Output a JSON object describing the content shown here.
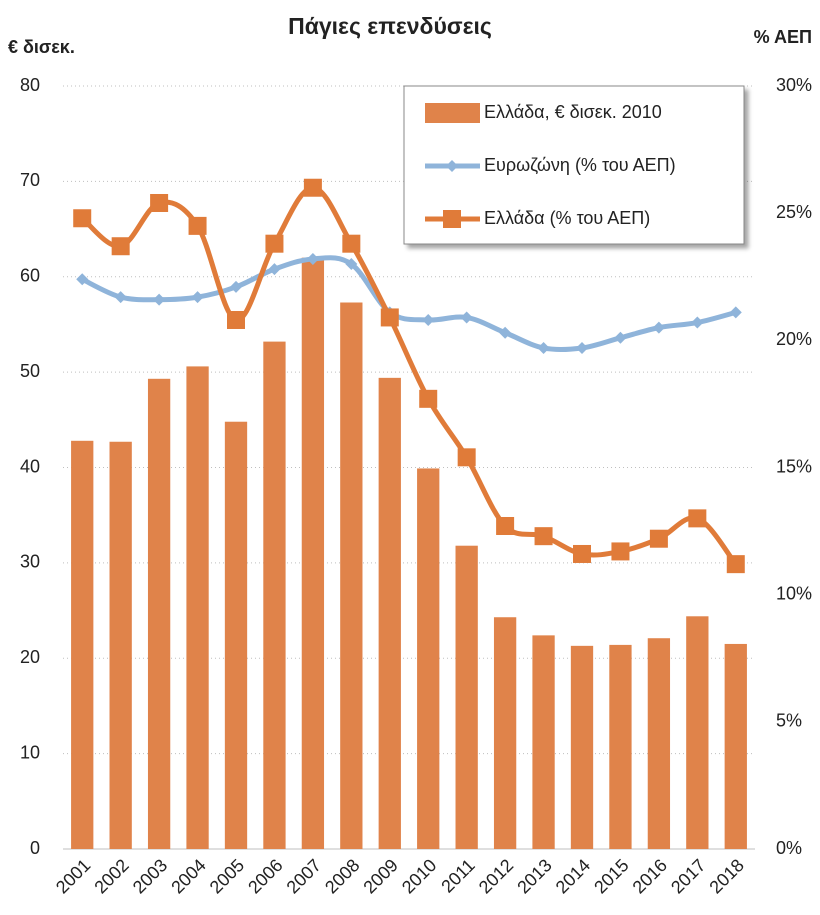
{
  "chart_data": {
    "type": "bar_line",
    "title": "Πάγιες επενδύσεις",
    "ylabel": "€ δισεκ.",
    "y2label": "% ΑΕΠ",
    "categories": [
      "2001",
      "2002",
      "2003",
      "2004",
      "2005",
      "2006",
      "2007",
      "2008",
      "2009",
      "2010",
      "2011",
      "2012",
      "2013",
      "2014",
      "2015",
      "2016",
      "2017",
      "2018"
    ],
    "series": [
      {
        "name": "Ελλάδα, € δισεκ. 2010",
        "type": "bar",
        "color": "#E0834A",
        "values": [
          42.8,
          42.7,
          49.3,
          50.6,
          44.8,
          53.2,
          62.0,
          57.3,
          49.4,
          39.9,
          31.8,
          24.3,
          22.4,
          21.3,
          21.4,
          22.1,
          24.4,
          21.5
        ]
      },
      {
        "name": "Ευρωζώνη (% του ΑΕΠ)",
        "type": "line",
        "marker": "diamond",
        "axis": "y2",
        "color": "#8FB4DA",
        "values": [
          22.4,
          21.7,
          21.6,
          21.7,
          22.1,
          22.8,
          23.2,
          23.0,
          21.1,
          20.8,
          20.9,
          20.3,
          19.7,
          19.7,
          20.1,
          20.5,
          20.7,
          21.1
        ]
      },
      {
        "name": "Ελλάδα (% του ΑΕΠ)",
        "type": "line",
        "marker": "square",
        "axis": "y2",
        "color": "#E07B39",
        "values": [
          24.8,
          23.7,
          25.4,
          24.5,
          20.8,
          23.8,
          26.0,
          23.8,
          20.9,
          17.7,
          15.4,
          12.7,
          12.3,
          11.6,
          11.7,
          12.2,
          13.0,
          11.2
        ]
      }
    ],
    "ylim": [
      0,
      80
    ],
    "yticks": [
      0,
      10,
      20,
      30,
      40,
      50,
      60,
      70,
      80
    ],
    "y2lim": [
      0,
      30
    ],
    "y2ticks": [
      {
        "value": 0,
        "label": "0%"
      },
      {
        "value": 5,
        "label": "5%"
      },
      {
        "value": 10,
        "label": "10%"
      },
      {
        "value": 15,
        "label": "15%"
      },
      {
        "value": 20,
        "label": "20%"
      },
      {
        "value": 25,
        "label": "25%"
      },
      {
        "value": 30,
        "label": "30%"
      }
    ],
    "grid": true,
    "legend": "top-right"
  }
}
